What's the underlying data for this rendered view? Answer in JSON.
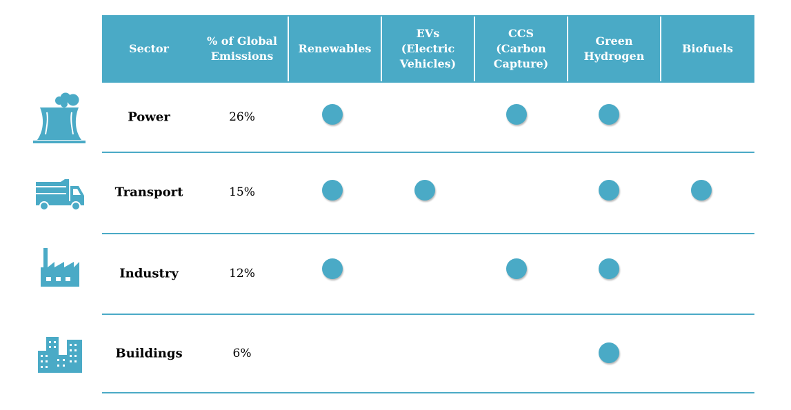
{
  "colors": {
    "accent": "#4aaac6",
    "header_text": "#ffffff",
    "text": "#000000"
  },
  "columns": [
    {
      "key": "sector",
      "label": "Sector"
    },
    {
      "key": "share",
      "label": "% of Global\nEmissions"
    },
    {
      "key": "renewables",
      "label": "Renewables"
    },
    {
      "key": "evs",
      "label": "EVs\n(Electric\nVehicles)"
    },
    {
      "key": "ccs",
      "label": "CCS\n(Carbon\nCapture)"
    },
    {
      "key": "hydrogen",
      "label": "Green\nHydrogen"
    },
    {
      "key": "biofuels",
      "label": "Biofuels"
    }
  ],
  "rows": [
    {
      "sector": "Power",
      "share": "26%",
      "icon": "power-plant-icon",
      "solutions": {
        "renewables": true,
        "evs": false,
        "ccs": true,
        "hydrogen": true,
        "biofuels": false
      }
    },
    {
      "sector": "Transport",
      "share": "15%",
      "icon": "truck-icon",
      "solutions": {
        "renewables": true,
        "evs": true,
        "ccs": false,
        "hydrogen": true,
        "biofuels": true
      }
    },
    {
      "sector": "Industry",
      "share": "12%",
      "icon": "factory-icon",
      "solutions": {
        "renewables": true,
        "evs": false,
        "ccs": true,
        "hydrogen": true,
        "biofuels": false
      }
    },
    {
      "sector": "Buildings",
      "share": "6%",
      "icon": "buildings-icon",
      "solutions": {
        "renewables": false,
        "evs": false,
        "ccs": false,
        "hydrogen": true,
        "biofuels": false
      }
    }
  ]
}
